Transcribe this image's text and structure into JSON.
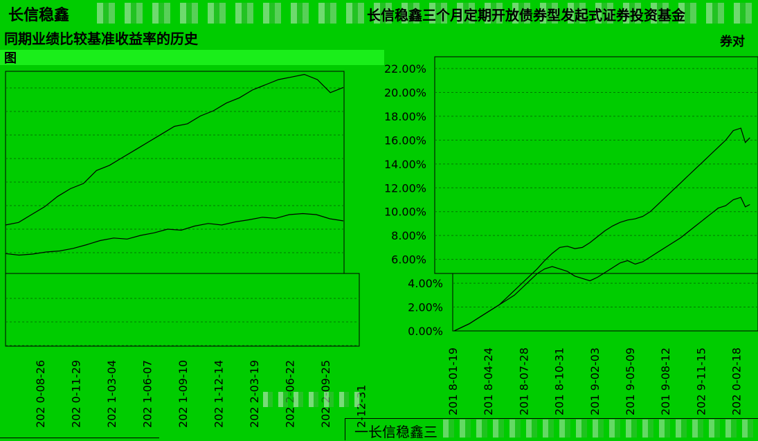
{
  "texts": {
    "top_left_title": "长信稳鑫",
    "top_right_title": "长信稳鑫三个月定期开放债券型发起式证券投资基金",
    "left_title_2": "同期业绩比较基准收益率的历史",
    "left_title_3": "图",
    "right_title_2": "券对",
    "legend_label": "一长信稳鑫三"
  },
  "colors": {
    "background": "#00cc00",
    "ink": "#000000",
    "grid": "#007700"
  },
  "chart_data": [
    {
      "type": "line",
      "title": "",
      "x_ticks": [
        "2020-08-26",
        "2020-11-29",
        "2021-03-04",
        "2021-06-07",
        "2021-09-10",
        "2021-12-14",
        "2022-03-19",
        "2022-06-22",
        "2022-09-25",
        "2022-12-31"
      ],
      "x_tick_display": [
        "202 0-08-26",
        "202 0-11-29",
        "202 1-03-04",
        "202 1-06-07",
        "202 1-09-10",
        "202 1-12-14",
        "202 2-03-19",
        "202 2-06-22",
        "202 2-09-25",
        "2-12-31"
      ],
      "series": [
        {
          "values": [
            10,
            10.5,
            12,
            13.5,
            15.5,
            17,
            18,
            20.5,
            21.5,
            23,
            24.5,
            26,
            27.5,
            29,
            29.5,
            31,
            32,
            33.5,
            34.5,
            36,
            37,
            38,
            38.5,
            39,
            38,
            35.5,
            36.5
          ]
        },
        {
          "values": [
            4.5,
            4.2,
            4.4,
            4.8,
            5.0,
            5.5,
            6.2,
            7.0,
            7.5,
            7.3,
            8.0,
            8.5,
            9.2,
            9.0,
            9.8,
            10.3,
            10.0,
            10.6,
            11.0,
            11.5,
            11.3,
            12.0,
            12.2,
            12.0,
            11.2,
            10.8
          ]
        }
      ]
    },
    {
      "type": "line",
      "title": "",
      "ylim": [
        0,
        22
      ],
      "y_ticks": [
        "0.00%",
        "2.00%",
        "4.00%",
        "6.00%",
        "8.00%",
        "10.00%",
        "12.00%",
        "14.00%",
        "16.00%",
        "18.00%",
        "20.00%",
        "22.00%"
      ],
      "x_ticks": [
        "2018-01-19",
        "2018-04-24",
        "2018-07-28",
        "2018-10-31",
        "2019-02-03",
        "2019-05-09",
        "2019-08-12",
        "2019-11-15",
        "2020-02-18"
      ],
      "x_tick_display": [
        "201 8-01-19",
        "201 8-04-24",
        "201 8-07-28",
        "201 8-10-31",
        "201 9-02-03",
        "201 9-05-09",
        "201 9-08-12",
        "202 9-11-15",
        "202 0-02-18"
      ],
      "series": [
        {
          "x": [
            0,
            0.5,
            1,
            1.5,
            2,
            2.5,
            3,
            3.5,
            4,
            4.5,
            5,
            5.5,
            6,
            6.5,
            7,
            7.5,
            8,
            8.5,
            9,
            9.5,
            10,
            10.5,
            11,
            11.5,
            12,
            12.5,
            13,
            13.5,
            14,
            14.5,
            15,
            15.5,
            16,
            16.5,
            17,
            17.5,
            18,
            18.5,
            19,
            19.3,
            19.6
          ],
          "values": [
            0,
            0.3,
            0.6,
            1.0,
            1.4,
            1.8,
            2.2,
            2.8,
            3.4,
            4.0,
            4.6,
            5.2,
            5.9,
            6.5,
            7.0,
            7.1,
            6.9,
            7.0,
            7.4,
            7.9,
            8.4,
            8.8,
            9.1,
            9.3,
            9.4,
            9.6,
            10.0,
            10.6,
            11.2,
            11.8,
            12.4,
            13.0,
            13.6,
            14.2,
            14.8,
            15.4,
            16.0,
            16.8,
            17.0,
            15.8,
            16.2
          ]
        },
        {
          "x": [
            0,
            0.5,
            1,
            1.5,
            2,
            2.5,
            3,
            3.5,
            4,
            4.5,
            5,
            5.5,
            6,
            6.5,
            7,
            7.5,
            8,
            8.5,
            9,
            9.5,
            10,
            10.5,
            11,
            11.5,
            12,
            12.5,
            13,
            13.5,
            14,
            14.5,
            15,
            15.5,
            16,
            16.5,
            17,
            17.5,
            18,
            18.5,
            19,
            19.3,
            19.6
          ],
          "values": [
            0,
            0.3,
            0.6,
            1.0,
            1.4,
            1.8,
            2.2,
            2.6,
            3.0,
            3.6,
            4.2,
            4.8,
            5.2,
            5.4,
            5.2,
            5.0,
            4.6,
            4.4,
            4.2,
            4.5,
            4.9,
            5.3,
            5.7,
            5.9,
            5.6,
            5.8,
            6.2,
            6.6,
            7.0,
            7.4,
            7.8,
            8.3,
            8.8,
            9.3,
            9.8,
            10.3,
            10.5,
            11.0,
            11.2,
            10.4,
            10.6
          ]
        }
      ]
    }
  ]
}
